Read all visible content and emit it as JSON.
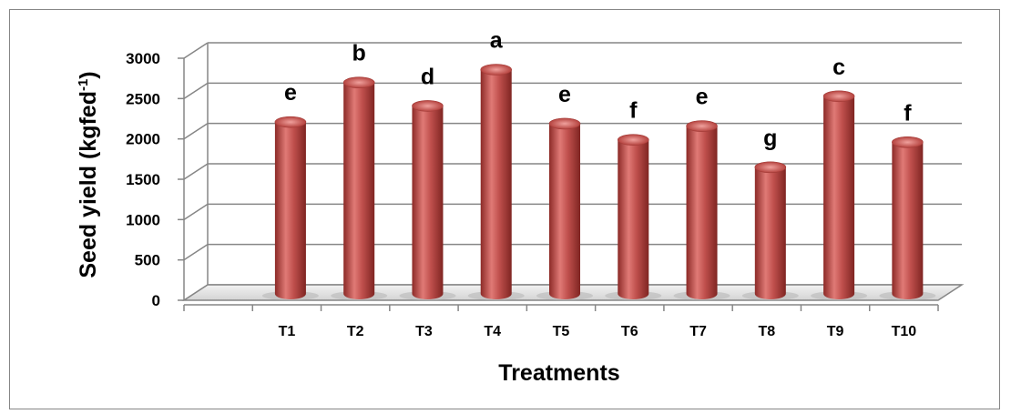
{
  "chart_data": {
    "type": "bar",
    "categories": [
      "T1",
      "T2",
      "T3",
      "T4",
      "T5",
      "T6",
      "T7",
      "T8",
      "T9",
      "T10"
    ],
    "values": [
      2130,
      2620,
      2330,
      2780,
      2110,
      1910,
      2080,
      1570,
      2450,
      1880
    ],
    "annotations": [
      "e",
      "b",
      "d",
      "a",
      "e",
      "f",
      "e",
      "g",
      "c",
      "f"
    ],
    "xlabel": "Treatments",
    "ylabel_main": "Seed yield (kgfed",
    "ylabel_sup": "-1",
    "ylabel_end": ")",
    "ylim": [
      0,
      3000
    ],
    "yticks": [
      "0",
      "500",
      "1000",
      "1500",
      "2000",
      "2500",
      "3000"
    ],
    "grid": true,
    "legend": "none",
    "bar_color": "#c0504d"
  }
}
